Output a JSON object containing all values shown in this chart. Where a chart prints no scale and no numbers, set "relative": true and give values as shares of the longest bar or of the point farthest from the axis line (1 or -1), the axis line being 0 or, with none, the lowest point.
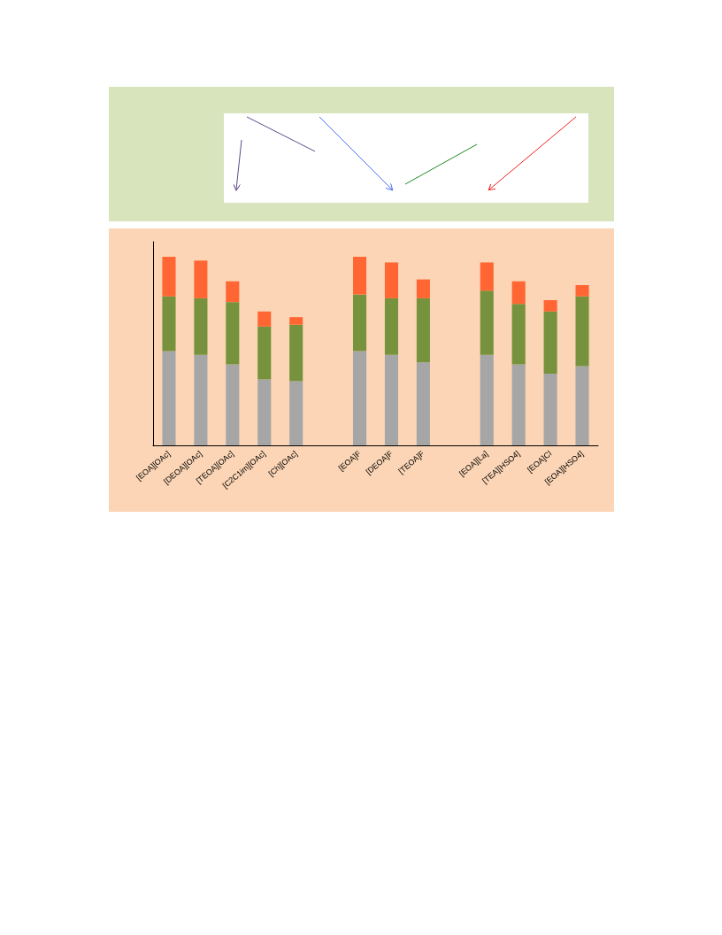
{
  "chart_data": {
    "type": "bar",
    "relative": true,
    "stacked": true,
    "categories": [
      "[EOA][OAc]",
      "[DEOA][OAc]",
      "[TEOA][OAc]",
      "[C2C1im][OAc]",
      "[Ch][OAc]",
      null,
      "[EOA]F",
      "[DEOA]F",
      "[TEOA]F",
      null,
      "[EOA][La]",
      "[TEA][HSO4]",
      "[EOA]Cl",
      "[EOA][HSO4]"
    ],
    "series": [
      {
        "color": "#a6a6a6",
        "values": [
          0.5,
          0.48,
          0.43,
          0.35,
          0.34,
          null,
          0.5,
          0.48,
          0.44,
          null,
          0.48,
          0.43,
          0.38,
          0.42
        ]
      },
      {
        "color": "#76923c",
        "values": [
          0.29,
          0.3,
          0.33,
          0.28,
          0.3,
          null,
          0.3,
          0.3,
          0.34,
          null,
          0.34,
          0.32,
          0.33,
          0.37
        ]
      },
      {
        "color": "#ff6633",
        "values": [
          0.21,
          0.2,
          0.11,
          0.08,
          0.04,
          null,
          0.2,
          0.19,
          0.1,
          null,
          0.15,
          0.12,
          0.06,
          0.06
        ]
      }
    ],
    "grid": false
  }
}
